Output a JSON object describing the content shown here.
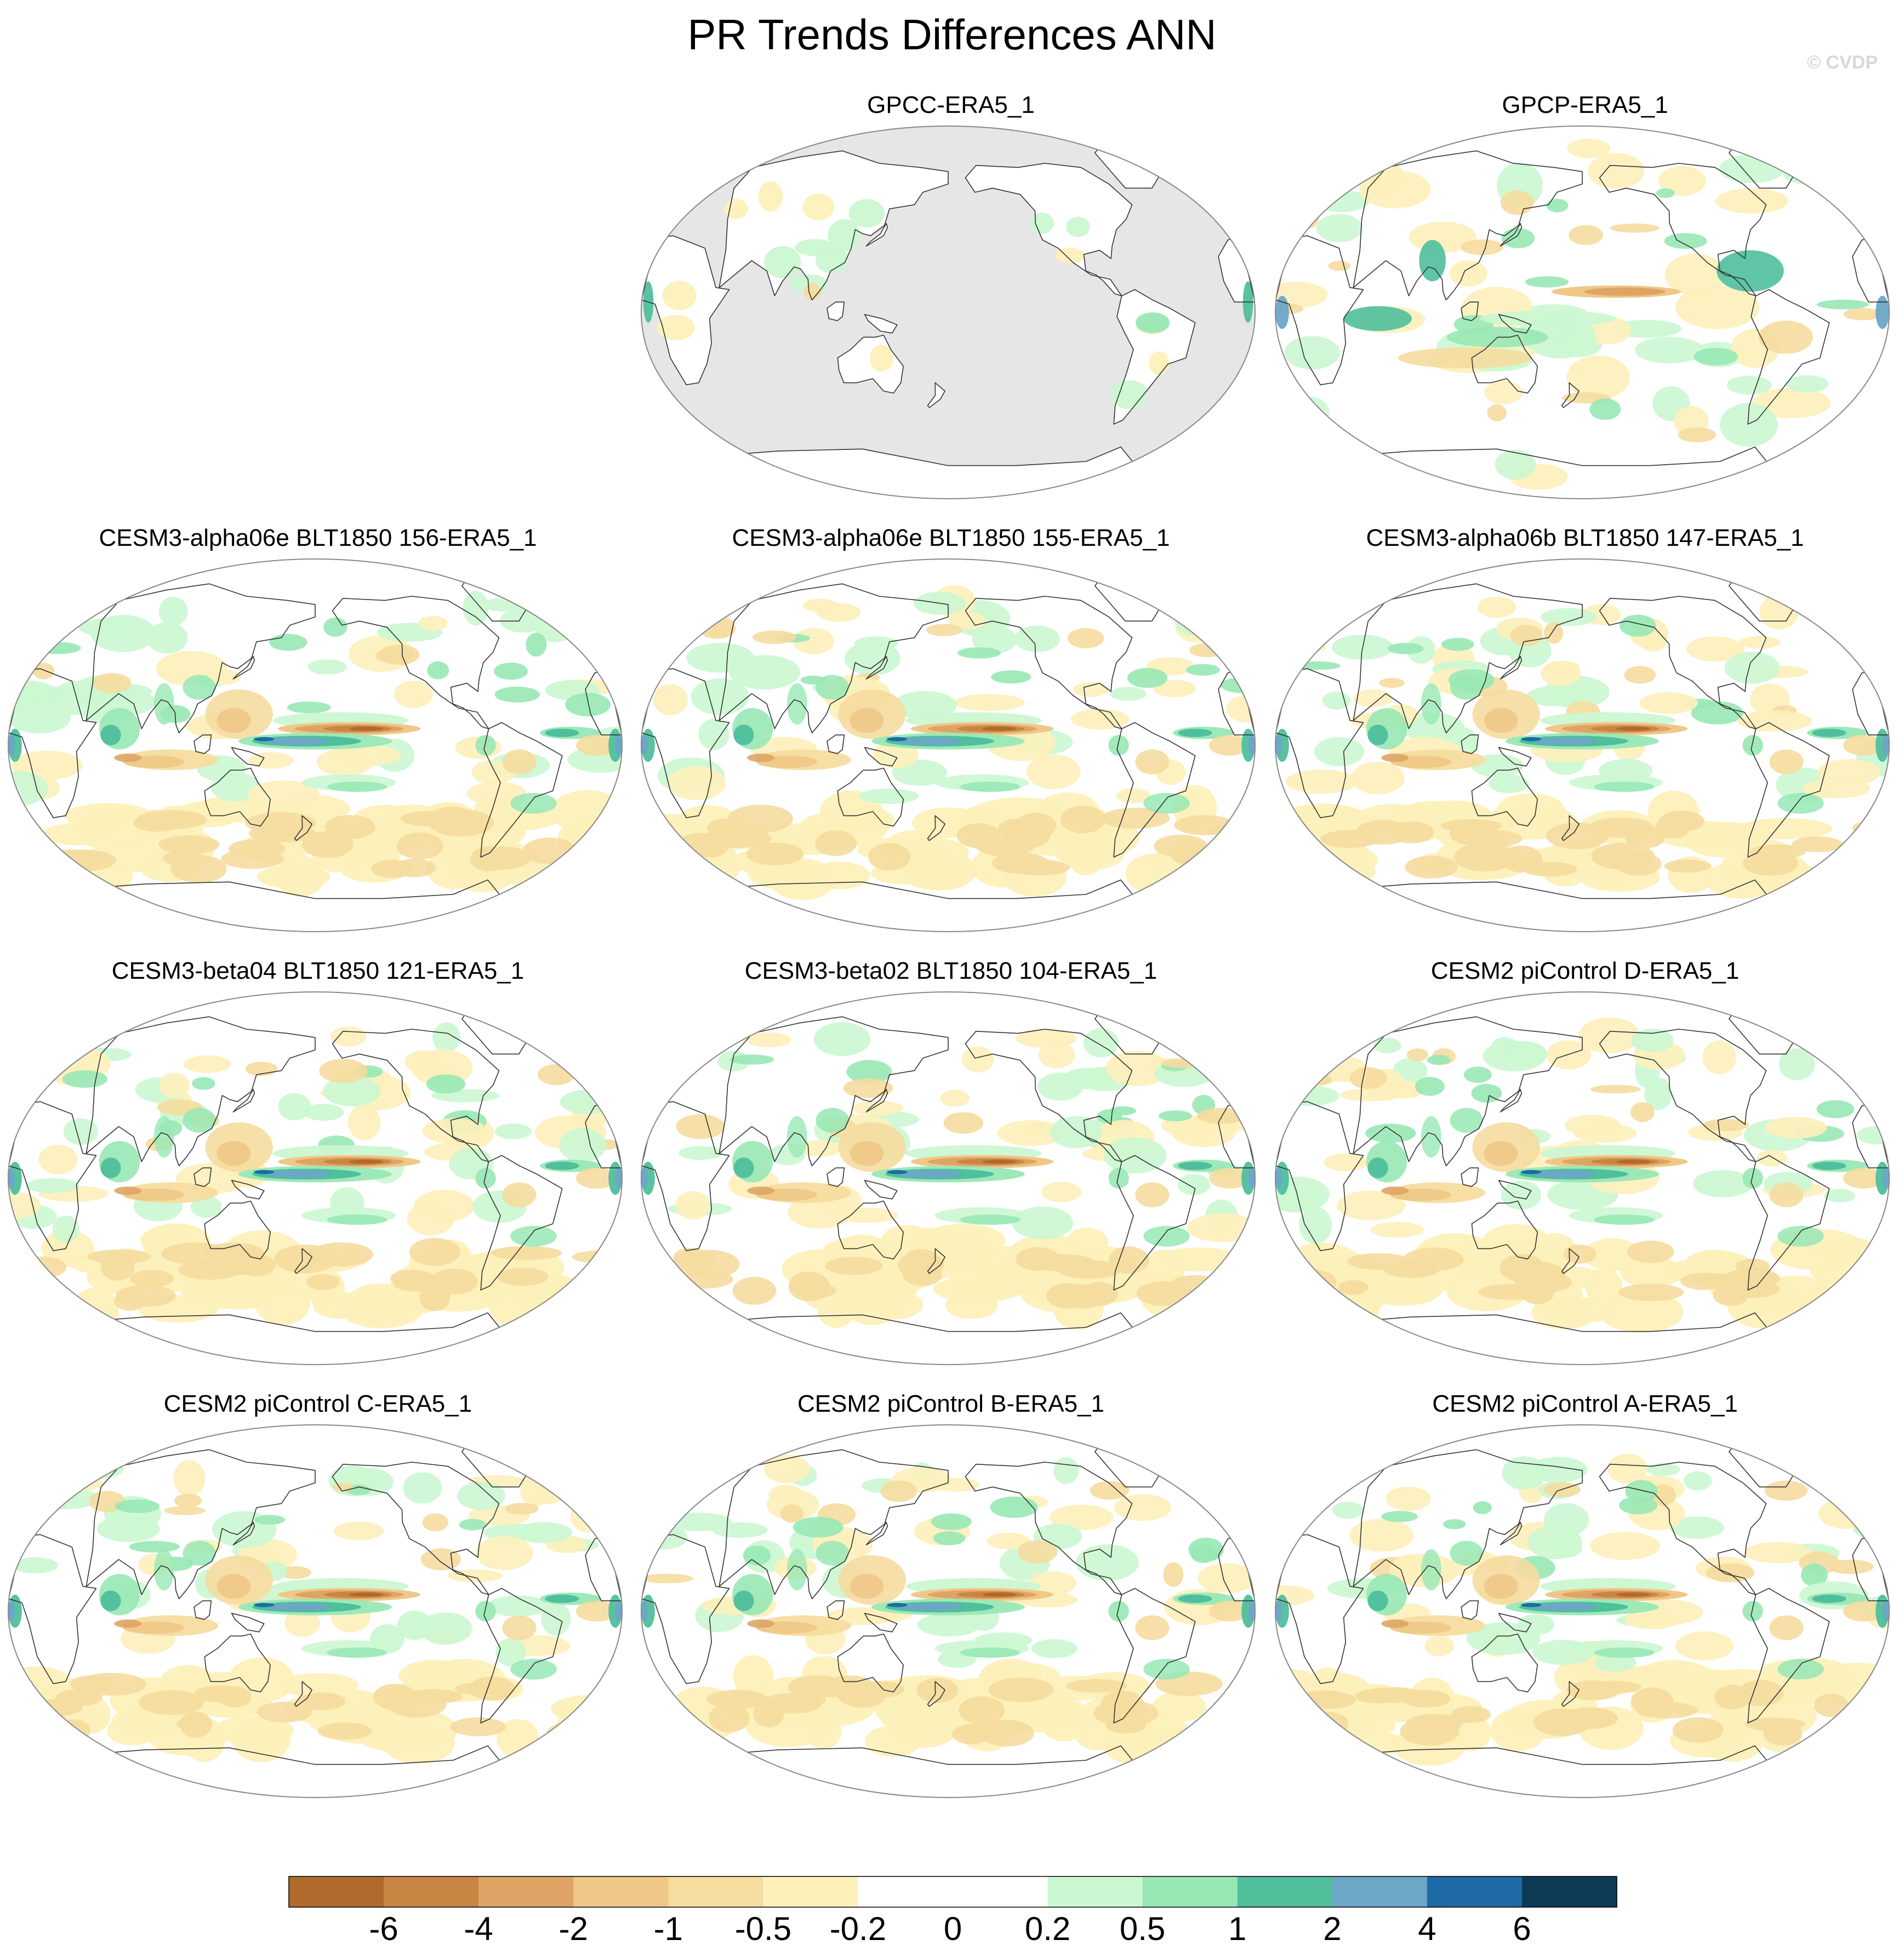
{
  "title": "PR Trends Differences ANN",
  "credit": "© CVDP",
  "colors": {
    "land_missing": "#e6e6e6",
    "coast": "#333333",
    "outline": "#888888",
    "bins": [
      "#b06a2c",
      "#c98544",
      "#dea466",
      "#efc887",
      "#f5dc9f",
      "#fdf0bb",
      "#ffffff",
      "#ffffff",
      "#cbf7d2",
      "#98e8b5",
      "#4fbf9c",
      "#6ca7c7",
      "#1e6aa6",
      "#0d3a55"
    ]
  },
  "colorbar": {
    "labels": [
      "-6",
      "-4",
      "-2",
      "-1",
      "-0.5",
      "-0.2",
      "0",
      "0.2",
      "0.5",
      "1",
      "2",
      "4",
      "6"
    ]
  },
  "panels": [
    {
      "title": "GPCC-ERA5_1",
      "kind": "land"
    },
    {
      "title": "GPCP-ERA5_1",
      "kind": "obs"
    },
    {
      "title": "CESM3-alpha06e BLT1850 156-ERA5_1",
      "kind": "model"
    },
    {
      "title": "CESM3-alpha06e BLT1850 155-ERA5_1",
      "kind": "model"
    },
    {
      "title": "CESM3-alpha06b BLT1850 147-ERA5_1",
      "kind": "model"
    },
    {
      "title": "CESM3-beta04 BLT1850 121-ERA5_1",
      "kind": "model"
    },
    {
      "title": "CESM3-beta02 BLT1850 104-ERA5_1",
      "kind": "model"
    },
    {
      "title": "CESM2 piControl D-ERA5_1",
      "kind": "model"
    },
    {
      "title": "CESM2 piControl C-ERA5_1",
      "kind": "model"
    },
    {
      "title": "CESM2 piControl B-ERA5_1",
      "kind": "model"
    },
    {
      "title": "CESM2 piControl A-ERA5_1",
      "kind": "model"
    }
  ]
}
